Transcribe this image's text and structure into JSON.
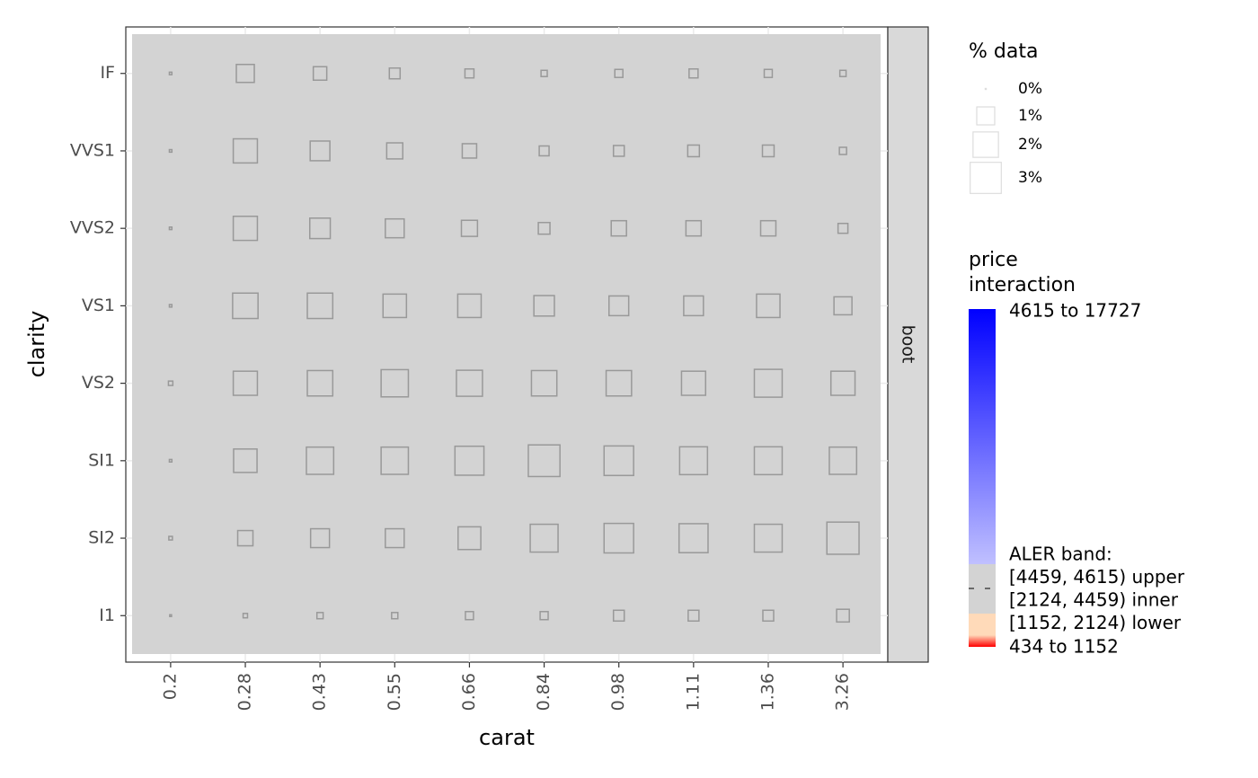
{
  "chart_data": {
    "type": "tile-size",
    "x_label": "carat",
    "y_label": "clarity",
    "facet": "boot",
    "categories": [
      "0.2",
      "0.28",
      "0.43",
      "0.55",
      "0.66",
      "0.84",
      "0.98",
      "1.11",
      "1.36",
      "3.26"
    ],
    "y_categories": [
      "IF",
      "VVS1",
      "VVS2",
      "VS1",
      "VS2",
      "SI1",
      "SI2",
      "I1"
    ],
    "values": [
      [
        0.02,
        1.0,
        0.56,
        0.36,
        0.25,
        0.12,
        0.2,
        0.25,
        0.2,
        0.12
      ],
      [
        0.02,
        1.8,
        1.2,
        0.8,
        0.64,
        0.3,
        0.36,
        0.42,
        0.42,
        0.16
      ],
      [
        0.02,
        1.8,
        1.3,
        1.1,
        0.8,
        0.42,
        0.72,
        0.72,
        0.72,
        0.3
      ],
      [
        0.02,
        2.0,
        2.0,
        1.7,
        1.7,
        1.3,
        1.2,
        1.2,
        1.7,
        1.0
      ],
      [
        0.06,
        1.8,
        2.0,
        2.3,
        2.1,
        2.0,
        2.0,
        1.8,
        2.4,
        1.8
      ],
      [
        0.02,
        1.7,
        2.3,
        2.3,
        2.6,
        3.1,
        2.7,
        2.4,
        2.4,
        2.3
      ],
      [
        0.04,
        0.72,
        1.1,
        1.1,
        1.6,
        2.4,
        2.7,
        2.6,
        2.4,
        3.2
      ],
      [
        0.01,
        0.06,
        0.12,
        0.12,
        0.2,
        0.2,
        0.36,
        0.36,
        0.36,
        0.5
      ]
    ],
    "square_color": "#999999",
    "tile_color": "#d3d3d3",
    "size_legend": {
      "title": "% data",
      "breaks": [
        {
          "value": 0,
          "label": "0%"
        },
        {
          "value": 1,
          "label": "1%"
        },
        {
          "value": 2,
          "label": "2%"
        },
        {
          "value": 3,
          "label": "3%"
        }
      ]
    },
    "color_legend": {
      "title_lines": [
        "price",
        "interaction"
      ],
      "high_label": "4615 to 17727",
      "band_lines": [
        "ALER band:",
        "[4459, 4615) upper",
        "[2124, 4459) inner",
        "[1152, 2124) lower"
      ],
      "low_label": "434 to 1152",
      "high_colors": [
        "#0000ff",
        "#c0c0ff"
      ],
      "band_color": "#d3d3d3",
      "low_colors": [
        "#ffdab9",
        "#ff0000"
      ]
    }
  }
}
